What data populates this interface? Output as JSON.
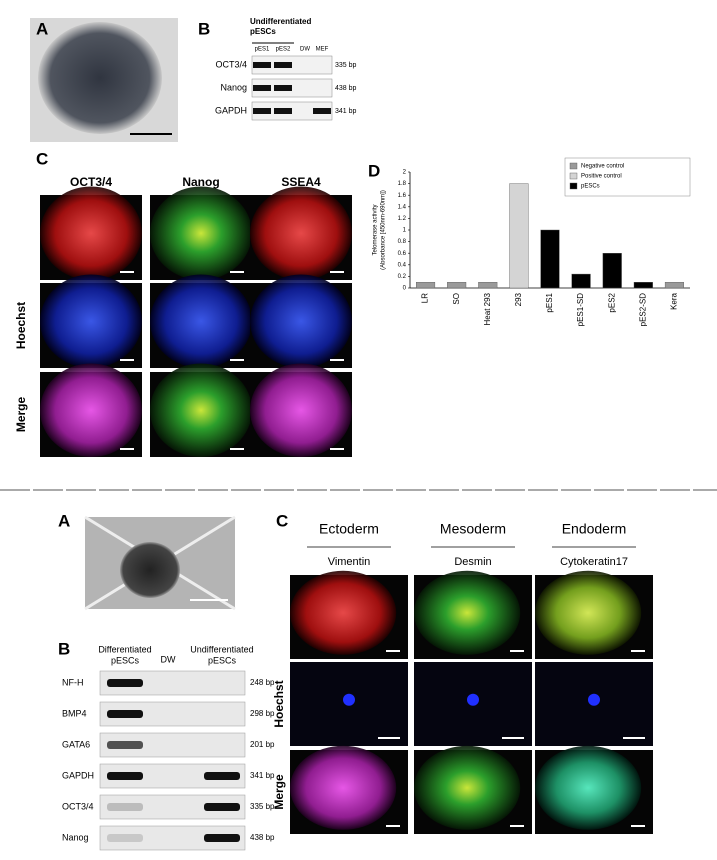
{
  "figure_top": {
    "panel_a": {
      "label": "A"
    },
    "panel_b": {
      "label": "B",
      "group_header": [
        "Undifferentiated",
        "pESCs"
      ],
      "lanes": [
        "pES1",
        "pES2",
        "DW",
        "MEF"
      ],
      "rows": [
        {
          "gene": "OCT3/4",
          "size": "335 bp"
        },
        {
          "gene": "Nanog",
          "size": "438 bp"
        },
        {
          "gene": "GAPDH",
          "size": "341 bp"
        }
      ]
    },
    "panel_c": {
      "label": "C",
      "columns": [
        "OCT3/4",
        "Nanog",
        "SSEA4"
      ],
      "rows": [
        "Hoechst",
        "Merge"
      ]
    },
    "panel_d": {
      "label": "D"
    }
  },
  "chart_data": {
    "type": "bar",
    "y_label": [
      "Telomerase activity",
      "(Absorbance [450nm-690nm])"
    ],
    "categories": [
      "LR",
      "SO",
      "Heat 293",
      "293",
      "pES1",
      "pES1-SD",
      "pES2",
      "pES2-SD",
      "Kera"
    ],
    "series": [
      {
        "name": "Negative control",
        "color": "#9a9a9a",
        "values": [
          0.1,
          0.1,
          0.1,
          null,
          null,
          null,
          null,
          null,
          0.1
        ]
      },
      {
        "name": "Positive control",
        "color": "#d4d4d4",
        "values": [
          null,
          null,
          null,
          1.8,
          null,
          null,
          null,
          null,
          null
        ]
      },
      {
        "name": "pESCs",
        "color": "#000000",
        "values": [
          null,
          null,
          null,
          null,
          1.0,
          0.24,
          0.6,
          0.1,
          null
        ]
      }
    ],
    "ylim": [
      0,
      2
    ],
    "yticks": [
      0,
      0.2,
      0.4,
      0.6,
      0.8,
      1,
      1.2,
      1.4,
      1.6,
      1.8,
      2
    ],
    "legend": "top-right"
  },
  "figure_bottom": {
    "panel_a": {
      "label": "A"
    },
    "panel_b": {
      "label": "B",
      "headers": [
        [
          "Differentiated",
          "pESCs"
        ],
        [
          "DW"
        ],
        [
          "Undifferentiated",
          "pESCs"
        ]
      ],
      "rows": [
        {
          "gene": "NF-H",
          "size": "248 bp"
        },
        {
          "gene": "BMP4",
          "size": "298 bp"
        },
        {
          "gene": "GATA6",
          "size": "201 bp"
        },
        {
          "gene": "GAPDH",
          "size": "341 bp"
        },
        {
          "gene": "OCT3/4",
          "size": "335 bp"
        },
        {
          "gene": "Nanog",
          "size": "438 bp"
        }
      ]
    },
    "panel_c": {
      "label": "C",
      "columns": [
        {
          "layer": "Ectoderm",
          "marker": "Vimentin"
        },
        {
          "layer": "Mesoderm",
          "marker": "Desmin"
        },
        {
          "layer": "Endoderm",
          "marker": "Cytokeratin17"
        }
      ],
      "rows": [
        "Hoechst",
        "Merge"
      ]
    }
  }
}
